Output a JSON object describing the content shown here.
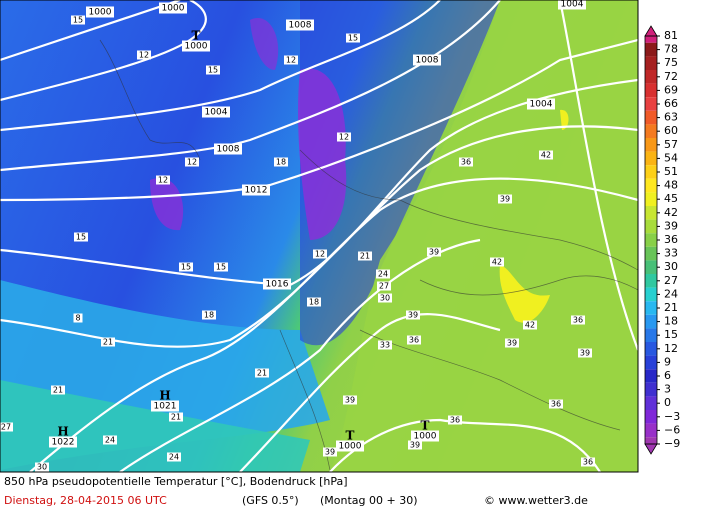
{
  "map": {
    "isobar_labels": [
      "1000",
      "1000",
      "1008",
      "1008",
      "1004",
      "1004",
      "1004",
      "1008",
      "1012",
      "1016"
    ],
    "pressure_centers": [
      {
        "symbol": "T",
        "value": "1000"
      },
      {
        "symbol": "H",
        "value": "1021"
      },
      {
        "symbol": "H",
        "value": "1022"
      },
      {
        "symbol": "T",
        "value": "1000"
      },
      {
        "symbol": "T",
        "value": "1000"
      }
    ],
    "temperature_labels": [
      "15",
      "12",
      "15",
      "12",
      "15",
      "12",
      "12",
      "12",
      "18",
      "15",
      "15",
      "15",
      "12",
      "18",
      "18",
      "21",
      "24",
      "27",
      "30",
      "33",
      "36",
      "39",
      "39",
      "36",
      "39",
      "42",
      "42",
      "42",
      "36",
      "39",
      "39",
      "39",
      "36",
      "36",
      "39",
      "39",
      "21",
      "21",
      "21",
      "24",
      "24",
      "27",
      "30",
      "8",
      "21",
      "36"
    ]
  },
  "legend": {
    "ticks": [
      "81",
      "78",
      "75",
      "72",
      "69",
      "66",
      "63",
      "60",
      "57",
      "54",
      "51",
      "48",
      "45",
      "42",
      "39",
      "36",
      "33",
      "30",
      "27",
      "24",
      "21",
      "18",
      "15",
      "12",
      "9",
      "6",
      "3",
      "0",
      "−3",
      "−6",
      "−9"
    ],
    "colors": [
      "#d0207a",
      "#8b1a1a",
      "#a52020",
      "#c02828",
      "#d83030",
      "#e84040",
      "#f05a28",
      "#f47a20",
      "#f89818",
      "#fbb414",
      "#fdd018",
      "#ffe820",
      "#f0f020",
      "#c8e632",
      "#a8dc3c",
      "#88d048",
      "#68c458",
      "#48c078",
      "#30c8a0",
      "#28d0d0",
      "#28b8f0",
      "#2898f0",
      "#2878e8",
      "#2858e0",
      "#2840d8",
      "#2828c8",
      "#4030d0",
      "#6030d8",
      "#8028d8",
      "#9830c8",
      "#a038b0"
    ]
  },
  "footer": {
    "title": "850 hPa pseudopotentielle Temperatur [°C], Bodendruck [hPa]",
    "date": "Dienstag, 28-04-2015  06 UTC",
    "model": "(GFS 0.5°)",
    "run": "(Montag 00 + 30)",
    "credit": "© www.wetter3.de"
  }
}
